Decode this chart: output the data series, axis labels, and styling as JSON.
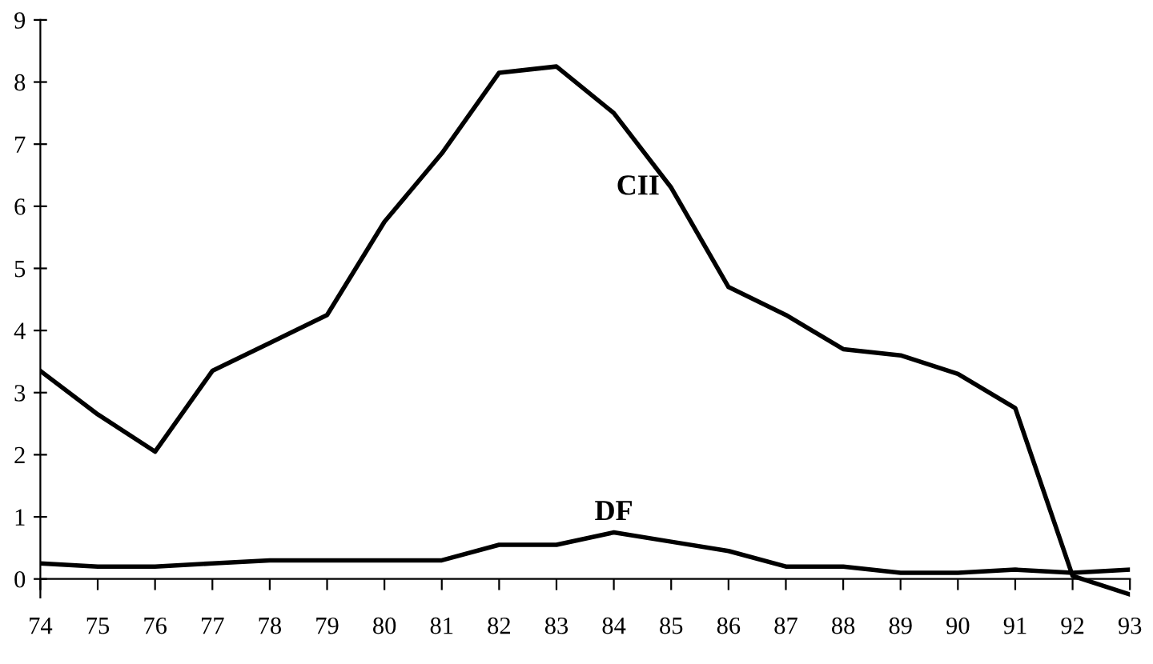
{
  "chart_data": {
    "type": "line",
    "x": [
      74,
      75,
      76,
      77,
      78,
      79,
      80,
      81,
      82,
      83,
      84,
      85,
      86,
      87,
      88,
      89,
      90,
      91,
      92,
      93
    ],
    "series": [
      {
        "name": "CII",
        "color": "#000000",
        "values": [
          3.35,
          2.65,
          2.05,
          3.35,
          3.8,
          4.25,
          5.75,
          6.85,
          8.15,
          8.25,
          7.5,
          6.3,
          4.7,
          4.25,
          3.7,
          3.6,
          3.3,
          2.75,
          0.05,
          -0.25
        ]
      },
      {
        "name": "DF",
        "color": "#000000",
        "values": [
          0.25,
          0.2,
          0.2,
          0.25,
          0.3,
          0.3,
          0.3,
          0.3,
          0.55,
          0.55,
          0.75,
          0.6,
          0.45,
          0.2,
          0.2,
          0.1,
          0.1,
          0.15,
          0.1,
          0.15
        ]
      }
    ],
    "xlim": [
      74,
      93
    ],
    "ylim": [
      -0.3,
      9
    ],
    "xticks": [
      74,
      75,
      76,
      77,
      78,
      79,
      80,
      81,
      82,
      83,
      84,
      85,
      86,
      87,
      88,
      89,
      90,
      91,
      92,
      93
    ],
    "yticks": [
      0,
      1,
      2,
      3,
      4,
      5,
      6,
      7,
      8,
      9
    ],
    "grid": false,
    "legend": false,
    "marker": "none",
    "line_style": "solid"
  }
}
